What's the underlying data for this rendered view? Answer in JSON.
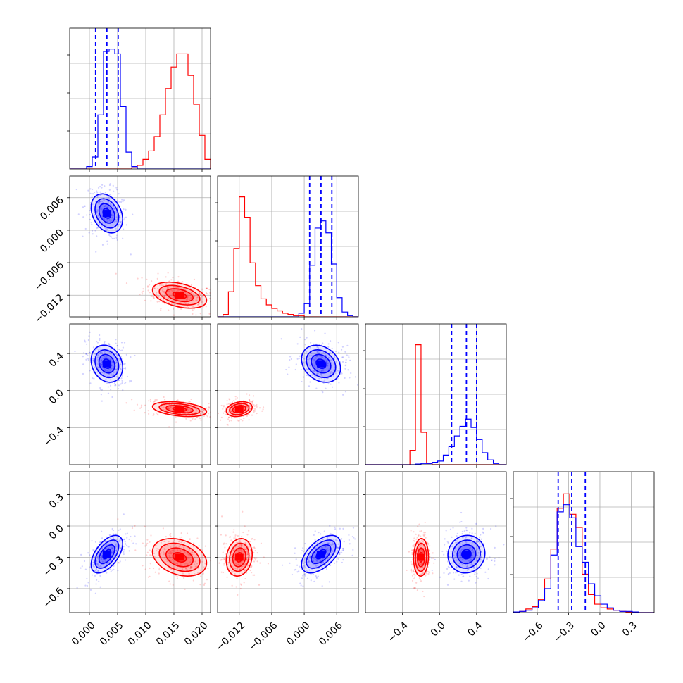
{
  "chart_data": {
    "type": "corner",
    "title": "",
    "colors": {
      "series_a": "#0000ff",
      "series_b": "#ff0000",
      "grid": "#b0b0b0"
    },
    "parameters": [
      {
        "ticks": [
          "0.000",
          "0.005",
          "0.010",
          "0.015",
          "0.020"
        ],
        "tick_values": [
          0.0,
          0.005,
          0.01,
          0.015,
          0.02
        ],
        "range": [
          -0.0035,
          0.0215
        ]
      },
      {
        "ticks": [
          "−0.012",
          "−0.006",
          "0.000",
          "0.006"
        ],
        "tick_values": [
          -0.012,
          -0.006,
          0.0,
          0.006
        ],
        "range": [
          -0.016,
          0.01
        ]
      },
      {
        "ticks": [
          "−0.4",
          "0.0",
          "0.4"
        ],
        "tick_values": [
          -0.4,
          0.0,
          0.4
        ],
        "range": [
          -0.8,
          0.72
        ]
      },
      {
        "ticks": [
          "−0.6",
          "−0.3",
          "0.0",
          "0.3"
        ],
        "tick_values": [
          -0.6,
          -0.3,
          0.0,
          0.3
        ],
        "range": [
          -0.83,
          0.52
        ]
      }
    ],
    "marginals": [
      {
        "bins": [
          -0.0035,
          -0.0025,
          -0.0015,
          -0.0005,
          0.0005,
          0.0015,
          0.0025,
          0.0035,
          0.0045,
          0.0055,
          0.0065,
          0.0075,
          0.0085,
          0.0095,
          0.0105,
          0.0115,
          0.0125,
          0.0135,
          0.0145,
          0.0155,
          0.0165,
          0.0175,
          0.0185,
          0.0195,
          0.0205,
          0.0215
        ],
        "series_a": [
          0,
          0,
          0,
          0.02,
          0.1,
          0.45,
          0.98,
          1.0,
          0.96,
          0.52,
          0.14,
          0.02,
          0,
          0,
          0,
          0,
          0,
          0,
          0,
          0,
          0,
          0,
          0,
          0,
          0
        ],
        "series_b": [
          0,
          0,
          0,
          0,
          0,
          0,
          0,
          0,
          0,
          0,
          0,
          0.01,
          0.03,
          0.08,
          0.15,
          0.27,
          0.45,
          0.67,
          0.85,
          0.96,
          0.96,
          0.78,
          0.54,
          0.28,
          0.08
        ],
        "quantiles_a": [
          0.0011,
          0.0031,
          0.0051
        ]
      },
      {
        "bins": [
          -0.016,
          -0.015,
          -0.014,
          -0.013,
          -0.012,
          -0.011,
          -0.01,
          -0.009,
          -0.008,
          -0.007,
          -0.006,
          -0.005,
          -0.004,
          -0.003,
          -0.002,
          -0.001,
          0.0,
          0.001,
          0.002,
          0.003,
          0.004,
          0.005,
          0.006,
          0.007,
          0.008,
          0.009,
          0.01
        ],
        "series_a": [
          0,
          0,
          0,
          0,
          0,
          0,
          0,
          0,
          0,
          0,
          0,
          0,
          0,
          0,
          0,
          0.03,
          0.11,
          0.43,
          0.74,
          0.8,
          0.7,
          0.44,
          0.16,
          0.04,
          0.01,
          0
        ],
        "series_b": [
          0,
          0.02,
          0.21,
          0.57,
          1.0,
          0.83,
          0.45,
          0.26,
          0.15,
          0.1,
          0.07,
          0.05,
          0.03,
          0.02,
          0.01,
          0.01,
          0,
          0,
          0,
          0,
          0,
          0,
          0,
          0,
          0,
          0
        ],
        "quantiles_a": [
          0.001,
          0.0031,
          0.0051
        ]
      },
      {
        "bins": [
          -0.8,
          -0.74,
          -0.68,
          -0.62,
          -0.56,
          -0.5,
          -0.44,
          -0.38,
          -0.32,
          -0.26,
          -0.2,
          -0.14,
          -0.08,
          -0.02,
          0.04,
          0.1,
          0.16,
          0.22,
          0.28,
          0.34,
          0.4,
          0.46,
          0.52,
          0.58,
          0.64,
          0.72
        ],
        "series_a": [
          0,
          0,
          0,
          0,
          0,
          0,
          0,
          0,
          0,
          0.005,
          0.01,
          0.01,
          0.02,
          0.03,
          0.08,
          0.15,
          0.24,
          0.32,
          0.38,
          0.31,
          0.21,
          0.1,
          0.04,
          0.01,
          0
        ],
        "series_b": [
          0,
          0,
          0,
          0,
          0,
          0,
          0,
          0,
          0.12,
          1.0,
          0.27,
          0.01,
          0,
          0,
          0,
          0,
          0,
          0,
          0,
          0,
          0,
          0,
          0,
          0,
          0
        ],
        "quantiles_a": [
          0.13,
          0.29,
          0.4
        ]
      },
      {
        "bins": [
          -0.83,
          -0.77,
          -0.71,
          -0.65,
          -0.59,
          -0.53,
          -0.47,
          -0.41,
          -0.35,
          -0.29,
          -0.23,
          -0.17,
          -0.11,
          -0.05,
          0.01,
          0.07,
          0.13,
          0.19,
          0.25,
          0.31,
          0.37,
          0.43,
          0.52
        ],
        "series_a": [
          0.005,
          0.01,
          0.02,
          0.04,
          0.1,
          0.2,
          0.48,
          0.84,
          0.9,
          0.79,
          0.55,
          0.42,
          0.24,
          0.14,
          0.07,
          0.04,
          0.02,
          0.01,
          0.01,
          0.005,
          0,
          0
        ],
        "series_b": [
          0.005,
          0.01,
          0.03,
          0.05,
          0.11,
          0.28,
          0.53,
          0.87,
          0.99,
          0.82,
          0.71,
          0.32,
          0.15,
          0.07,
          0.04,
          0.03,
          0.02,
          0.01,
          0.005,
          0,
          0,
          0
        ],
        "quantiles_a": [
          -0.4,
          -0.27,
          -0.14
        ]
      }
    ],
    "modes": {
      "series_a": {
        "mean": [
          0.0031,
          0.0031,
          0.29,
          -0.27
        ],
        "sd": [
          0.0014,
          0.0018,
          0.1,
          0.09
        ]
      },
      "series_b": {
        "mean": [
          0.016,
          -0.012,
          -0.2,
          -0.3
        ],
        "sd": [
          0.0024,
          0.0012,
          0.04,
          0.09
        ]
      }
    },
    "correlations": {
      "series_a": {
        "1-0": -0.3,
        "2-0": -0.2,
        "2-1": -0.25,
        "3-0": 0.55,
        "3-1": 0.55,
        "3-2": 0.05
      },
      "series_b": {
        "1-0": -0.4,
        "2-0": -0.35,
        "2-1": 0.25,
        "3-0": -0.3,
        "3-1": 0.15,
        "3-2": 0.05
      }
    },
    "contour_levels": [
      0.5,
      1.0,
      1.5,
      2.0
    ],
    "scatter_points_per_panel": 260,
    "grid": true,
    "legend": "none",
    "xlabel": "",
    "ylabel": ""
  }
}
